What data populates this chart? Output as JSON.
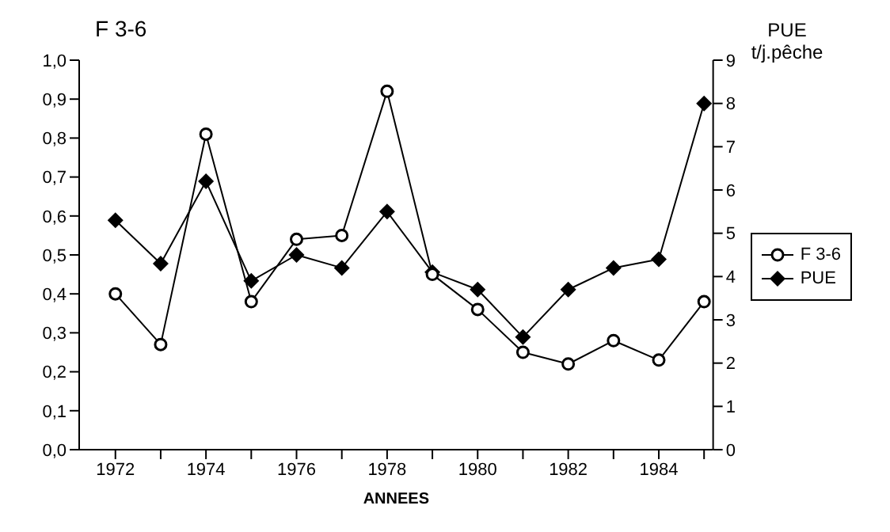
{
  "chart_data": {
    "type": "line",
    "ylabel": "F 3-6",
    "y2label": "PUE t/j.pêche",
    "xlabel": "ANNEES",
    "x": [
      1972,
      1973,
      1974,
      1975,
      1976,
      1977,
      1978,
      1979,
      1980,
      1981,
      1982,
      1983,
      1984,
      1985
    ],
    "series": [
      {
        "name": "F 3-6",
        "color": "#000000",
        "marker": "circle",
        "values": [
          0.4,
          0.27,
          0.81,
          0.38,
          0.54,
          0.55,
          0.92,
          0.45,
          0.36,
          0.25,
          0.22,
          0.28,
          0.23,
          0.38
        ]
      },
      {
        "name": "PUE",
        "color": "#000000",
        "marker": "diamond",
        "axis": "y2",
        "values": [
          5.3,
          4.3,
          6.2,
          3.9,
          4.5,
          4.2,
          5.5,
          4.1,
          3.7,
          2.6,
          3.7,
          4.2,
          4.4,
          8.0
        ]
      }
    ],
    "xlim": [
      1971.2,
      1985.2
    ],
    "xticks": [
      1972,
      {
        "value": 1973,
        "label": null
      },
      1974,
      {
        "value": 1975,
        "label": null
      },
      1976,
      {
        "value": 1977,
        "label": null
      },
      1978,
      {
        "value": 1979,
        "label": null
      },
      1980,
      {
        "value": 1981,
        "label": null
      },
      1982,
      {
        "value": 1983,
        "label": null
      },
      1984,
      {
        "value": 1985,
        "label": null
      }
    ],
    "ylim": [
      0,
      1
    ],
    "yticks": [
      {
        "value": 0,
        "label": "0,0"
      },
      {
        "value": 0.1,
        "label": "0,1"
      },
      {
        "value": 0.2,
        "label": "0,2"
      },
      {
        "value": 0.3,
        "label": "0,3"
      },
      {
        "value": 0.4,
        "label": "0,4"
      },
      {
        "value": 0.5,
        "label": "0,5"
      },
      {
        "value": 0.6,
        "label": "0,6"
      },
      {
        "value": 0.7,
        "label": "0,7"
      },
      {
        "value": 0.8,
        "label": "0,8"
      },
      {
        "value": 0.9,
        "label": "0,9"
      },
      {
        "value": 1,
        "label": "1,0"
      }
    ],
    "y2lim": [
      0,
      9
    ],
    "y2ticks": [
      0,
      1,
      2,
      3,
      4,
      5,
      6,
      7,
      8,
      9
    ],
    "grid": false,
    "legend": "right",
    "line_style": "solid"
  }
}
